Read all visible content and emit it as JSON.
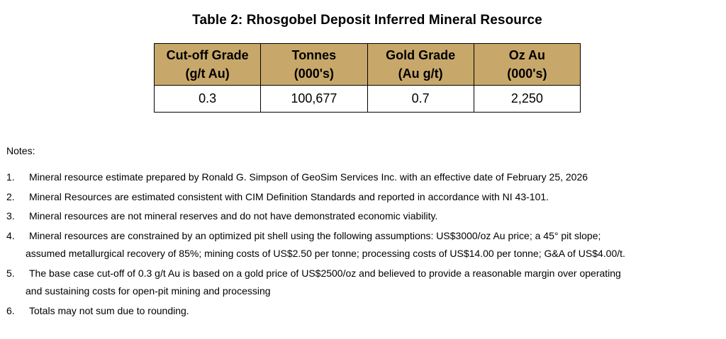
{
  "title": "Table 2: Rhosgobel Deposit Inferred Mineral Resource",
  "table": {
    "header_color": "#c8a86a",
    "columns": [
      {
        "line1": "Cut-off Grade",
        "line2": "(g/t Au)"
      },
      {
        "line1": "Tonnes",
        "line2": "(000's)"
      },
      {
        "line1": "Gold Grade",
        "line2": "(Au g/t)"
      },
      {
        "line1": "Oz Au",
        "line2": "(000's)"
      }
    ],
    "rows": [
      [
        "0.3",
        "100,677",
        "0.7",
        "2,250"
      ]
    ]
  },
  "notes": {
    "heading": "Notes:",
    "items": [
      {
        "number": "1.",
        "line1": "Mineral resource estimate prepared by Ronald G. Simpson of GeoSim Services Inc. with an effective date of February 25, 2026",
        "line2": ""
      },
      {
        "number": "2.",
        "line1": "Mineral Resources are estimated consistent with CIM Definition Standards and reported in accordance with NI 43-101.",
        "line2": ""
      },
      {
        "number": "3.",
        "line1": "Mineral resources are not mineral reserves and do not have demonstrated economic viability.",
        "line2": ""
      },
      {
        "number": "4.",
        "line1": "Mineral resources are constrained by an optimized pit shell using the following assumptions: US$3000/oz Au price; a 45° pit slope;",
        "line2": "assumed metallurgical recovery of 85%; mining costs of US$2.50 per tonne; processing costs of US$14.00 per tonne; G&A of US$4.00/t."
      },
      {
        "number": "5.",
        "line1": "The base case cut-off of 0.3 g/t Au is based on a gold price of US$2500/oz and believed to provide a reasonable margin over operating",
        "line2": "and sustaining costs for open-pit mining and processing"
      },
      {
        "number": "6.",
        "line1": "Totals may not sum due to rounding.",
        "line2": ""
      }
    ]
  }
}
